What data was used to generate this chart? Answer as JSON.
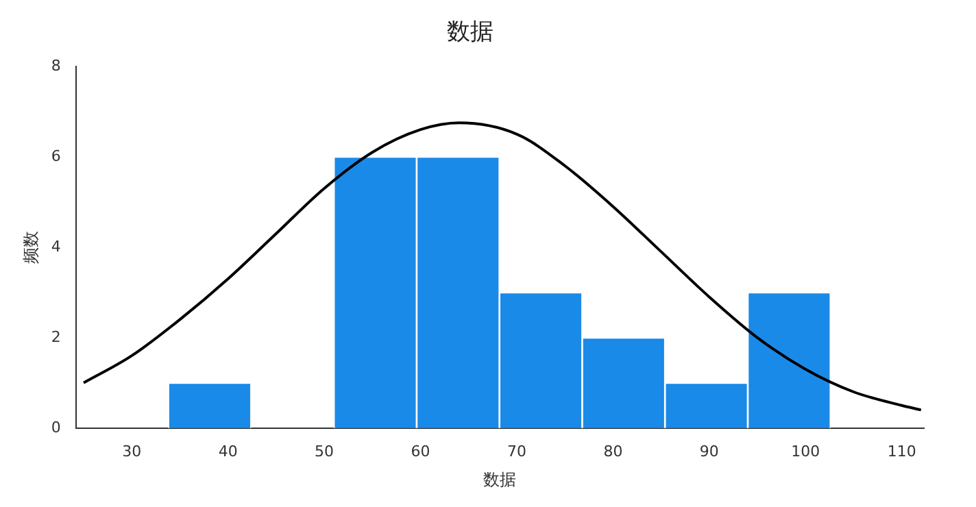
{
  "chart_data": {
    "type": "histogram",
    "title": "数据",
    "xlabel": "数据",
    "ylabel": "频数",
    "bins": [
      33.8,
      42.4,
      51.0,
      59.6,
      68.2,
      76.8,
      85.4,
      94.0,
      102.6
    ],
    "series": [
      {
        "color": "#1a8ae8",
        "values": [
          1,
          0,
          6,
          6,
          3,
          2,
          1,
          3
        ]
      },
      {
        "type": "line",
        "color": "#000000",
        "x": [
          25,
          30,
          35,
          40,
          45,
          50,
          55,
          60,
          64,
          70,
          75,
          80,
          85,
          90,
          95,
          100,
          105,
          110,
          112
        ],
        "values": [
          1.0,
          1.6,
          2.4,
          3.3,
          4.3,
          5.3,
          6.1,
          6.6,
          6.75,
          6.5,
          5.8,
          4.9,
          3.9,
          2.9,
          2.0,
          1.3,
          0.8,
          0.5,
          0.4
        ]
      }
    ],
    "xlim": [
      24.2,
      112.3
    ],
    "xticks": [
      30,
      40,
      50,
      60,
      70,
      80,
      90,
      100,
      110
    ],
    "ylim": [
      0,
      8
    ],
    "yticks": [
      0,
      2,
      4,
      6,
      8
    ],
    "grid": false,
    "legend": false,
    "marker": "none"
  }
}
